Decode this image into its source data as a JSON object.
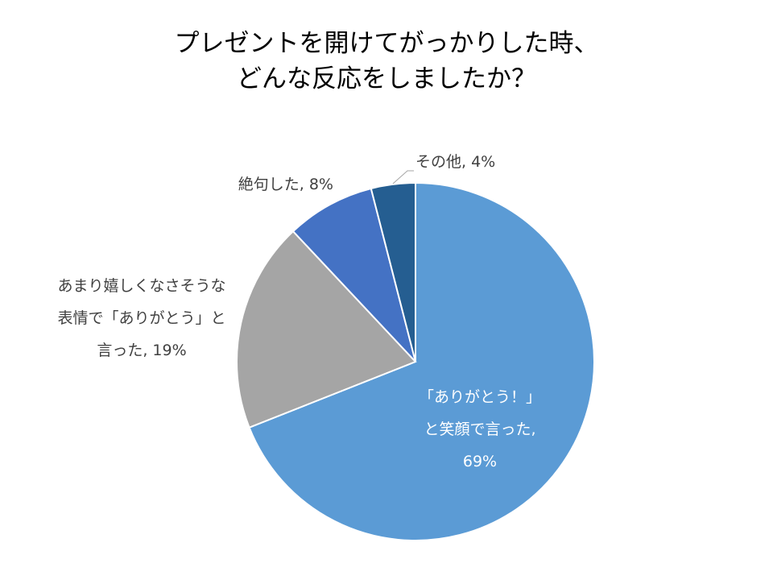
{
  "title": {
    "line1": "プレゼントを開けてがっかりした時、",
    "line2": "どんな反応をしましたか？"
  },
  "chart_data": {
    "type": "pie",
    "title": "プレゼントを開けてがっかりした時、どんな反応をしましたか？",
    "slices": [
      {
        "lines": [
          "「ありがとう！」",
          "と笑顔で言った,",
          "69%"
        ],
        "value": 69,
        "color": "#5B9BD5"
      },
      {
        "lines": [
          "あまり嬉しくなさそうな",
          "表情で「ありがとう」と",
          "言った, 19%"
        ],
        "value": 19,
        "color": "#A5A5A5"
      },
      {
        "lines": [
          "絶句した, 8%"
        ],
        "value": 8,
        "color": "#4472C4"
      },
      {
        "lines": [
          "その他, 4%"
        ],
        "value": 4,
        "color": "#255E91"
      }
    ],
    "start_angle": "12 o'clock",
    "direction": "clockwise",
    "legend": "none"
  }
}
